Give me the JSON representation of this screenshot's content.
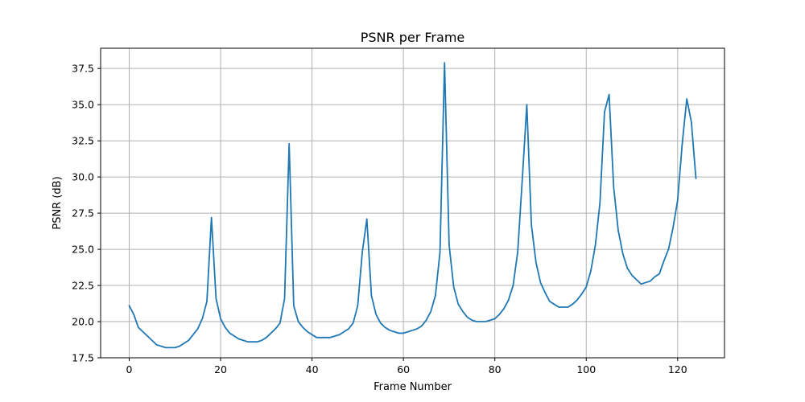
{
  "chart_data": {
    "type": "line",
    "title": "PSNR per Frame",
    "xlabel": "Frame Number",
    "ylabel": "PSNR (dB)",
    "xlim": [
      -6.25,
      130.25
    ],
    "ylim": [
      17.5,
      38.9
    ],
    "xticks": [
      0,
      20,
      40,
      60,
      80,
      100,
      120
    ],
    "xtick_labels": [
      "0",
      "20",
      "40",
      "60",
      "80",
      "100",
      "120"
    ],
    "yticks": [
      17.5,
      20.0,
      22.5,
      25.0,
      27.5,
      30.0,
      32.5,
      35.0,
      37.5
    ],
    "ytick_labels": [
      "17.5",
      "20.0",
      "22.5",
      "25.0",
      "27.5",
      "30.0",
      "32.5",
      "35.0",
      "37.5"
    ],
    "grid": true,
    "line_color": "#1f77b4",
    "series": [
      {
        "x": [
          0,
          1,
          2,
          3,
          4,
          5,
          6,
          7,
          8,
          9,
          10,
          11,
          12,
          13,
          14,
          15,
          16,
          17,
          18,
          19,
          20,
          21,
          22,
          23,
          24,
          25,
          26,
          27,
          28,
          29,
          30,
          31,
          32,
          33,
          34,
          35,
          36,
          37,
          38,
          39,
          40,
          41,
          42,
          43,
          44,
          45,
          46,
          47,
          48,
          49,
          50,
          51,
          52,
          53,
          54,
          55,
          56,
          57,
          58,
          59,
          60,
          61,
          62,
          63,
          64,
          65,
          66,
          67,
          68,
          69,
          70,
          71,
          72,
          73,
          74,
          75,
          76,
          77,
          78,
          79,
          80,
          81,
          82,
          83,
          84,
          85,
          86,
          87,
          88,
          89,
          90,
          91,
          92,
          93,
          94,
          95,
          96,
          97,
          98,
          99,
          100,
          101,
          102,
          103,
          104,
          105,
          106,
          107,
          108,
          109,
          110,
          111,
          112,
          113,
          114,
          115,
          116,
          117,
          118,
          119,
          120,
          121,
          122,
          123,
          124
        ],
        "values": [
          21.1,
          20.5,
          19.6,
          19.3,
          19.0,
          18.7,
          18.4,
          18.3,
          18.2,
          18.2,
          18.2,
          18.3,
          18.5,
          18.7,
          19.1,
          19.5,
          20.2,
          21.4,
          27.2,
          21.6,
          20.2,
          19.6,
          19.2,
          19.0,
          18.8,
          18.7,
          18.6,
          18.6,
          18.6,
          18.7,
          18.9,
          19.2,
          19.5,
          19.9,
          21.6,
          32.3,
          21.1,
          20.0,
          19.6,
          19.3,
          19.1,
          18.9,
          18.9,
          18.9,
          18.9,
          19.0,
          19.1,
          19.3,
          19.5,
          19.9,
          21.1,
          24.8,
          27.1,
          21.8,
          20.5,
          19.9,
          19.6,
          19.4,
          19.3,
          19.2,
          19.2,
          19.3,
          19.4,
          19.5,
          19.7,
          20.1,
          20.7,
          21.8,
          24.8,
          37.9,
          25.3,
          22.4,
          21.2,
          20.7,
          20.3,
          20.1,
          20.0,
          20.0,
          20.0,
          20.1,
          20.2,
          20.5,
          20.9,
          21.5,
          22.5,
          24.8,
          29.8,
          35.0,
          26.7,
          24.1,
          22.7,
          22.0,
          21.4,
          21.2,
          21.0,
          21.0,
          21.0,
          21.2,
          21.5,
          21.9,
          22.4,
          23.5,
          25.3,
          28.2,
          34.5,
          35.7,
          29.3,
          26.3,
          24.7,
          23.7,
          23.2,
          22.9,
          22.6,
          22.7,
          22.8,
          23.1,
          23.3,
          24.2,
          25.0,
          26.5,
          28.4,
          32.3,
          35.4,
          33.8,
          29.9
        ]
      }
    ]
  }
}
